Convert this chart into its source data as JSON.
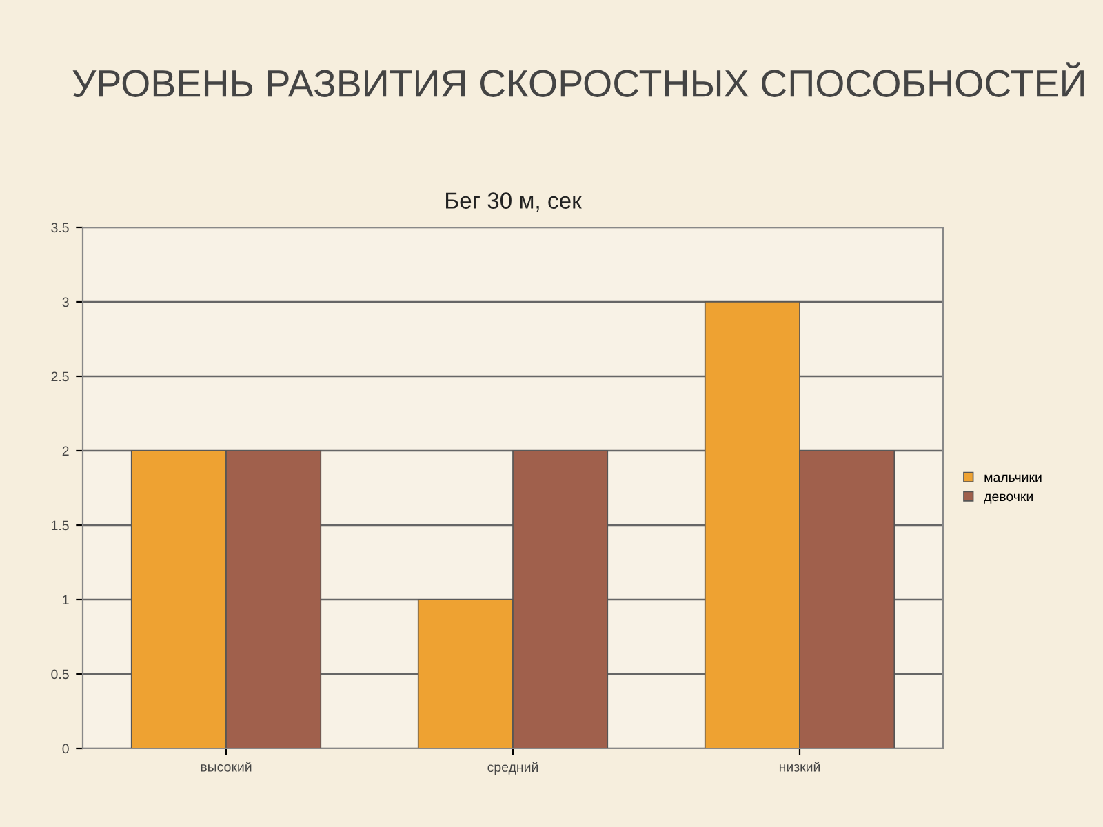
{
  "chart_data": {
    "type": "bar",
    "title": "УРОВЕНЬ РАЗВИТИЯ СКОРОСТНЫХ СПОСОБНОСТЕЙ",
    "subtitle": "Бег 30 м, сек",
    "categories": [
      "высокий",
      "средний",
      "низкий"
    ],
    "series": [
      {
        "name": "мальчики",
        "color": "#eea232",
        "values": [
          2,
          1,
          3
        ]
      },
      {
        "name": "девочки",
        "color": "#a0604c",
        "values": [
          2,
          2,
          2
        ]
      }
    ],
    "ylim": [
      0,
      3.5
    ],
    "yticks": [
      0,
      0.5,
      1,
      1.5,
      2,
      2.5,
      3,
      3.5
    ],
    "grid": "y",
    "legend": "right"
  }
}
